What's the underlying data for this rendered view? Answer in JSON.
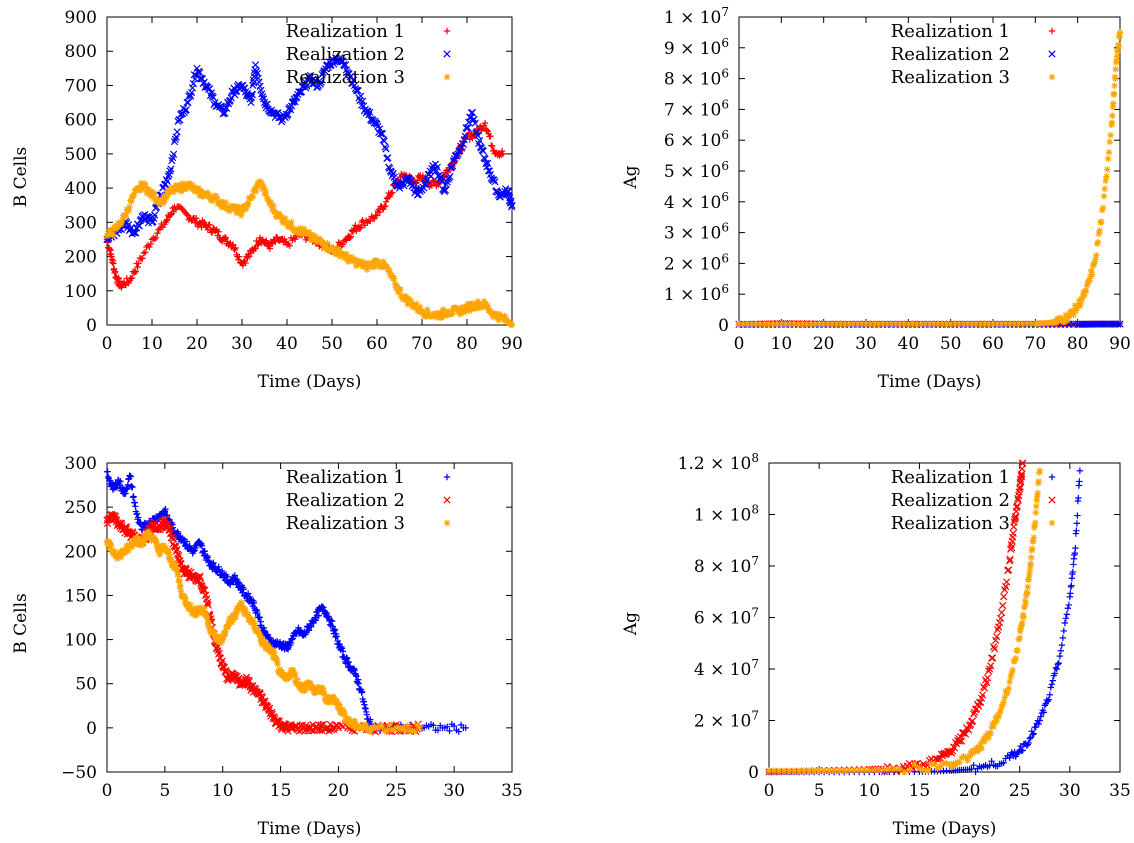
{
  "chart_data": [
    {
      "type": "scatter",
      "xlabel": "Time (Days)",
      "ylabel": "B Cells",
      "xlim": [
        0,
        90
      ],
      "ylim": [
        0,
        900
      ],
      "xticks": [
        "0",
        "10",
        "20",
        "30",
        "40",
        "50",
        "60",
        "70",
        "80",
        "90"
      ],
      "yticks": [
        "0",
        "100",
        "200",
        "300",
        "400",
        "500",
        "600",
        "700",
        "800",
        "900"
      ],
      "legend_position": "top-right",
      "series": [
        {
          "name": "Realization 1",
          "marker": "+",
          "color": "#ff0000",
          "x": [
            0,
            1,
            2,
            3,
            5,
            7,
            10,
            13,
            15,
            18,
            20,
            22,
            24,
            26,
            28,
            30,
            32,
            34,
            36,
            38,
            40,
            43,
            46,
            48,
            50,
            53,
            55,
            57,
            60,
            62,
            64,
            66,
            68,
            70,
            72,
            74,
            76,
            78,
            80,
            82,
            84,
            86,
            88
          ],
          "y": [
            250,
            200,
            140,
            115,
            130,
            180,
            250,
            300,
            345,
            320,
            300,
            290,
            275,
            250,
            235,
            180,
            210,
            255,
            230,
            250,
            235,
            265,
            250,
            235,
            215,
            250,
            280,
            300,
            320,
            360,
            410,
            440,
            420,
            430,
            410,
            420,
            460,
            500,
            550,
            560,
            590,
            510,
            500
          ]
        },
        {
          "name": "Realization 2",
          "marker": "x",
          "color": "#0000ff",
          "x": [
            0,
            2,
            4,
            6,
            8,
            10,
            12,
            14,
            16,
            18,
            20,
            22,
            24,
            26,
            28,
            30,
            32,
            33,
            35,
            37,
            39,
            41,
            43,
            45,
            47,
            49,
            51,
            53,
            55,
            57,
            59,
            61,
            63,
            65,
            67,
            69,
            71,
            73,
            75,
            77,
            79,
            81,
            83,
            85,
            87,
            89,
            90
          ],
          "y": [
            250,
            270,
            300,
            270,
            320,
            300,
            380,
            450,
            600,
            650,
            750,
            700,
            650,
            620,
            680,
            700,
            650,
            760,
            650,
            620,
            600,
            640,
            680,
            720,
            700,
            760,
            780,
            760,
            700,
            640,
            600,
            560,
            450,
            400,
            430,
            380,
            420,
            470,
            390,
            480,
            530,
            620,
            520,
            450,
            380,
            390,
            350
          ]
        },
        {
          "name": "Realization 3",
          "marker": "*",
          "color": "#ffa500",
          "x": [
            0,
            2,
            4,
            6,
            8,
            10,
            12,
            14,
            16,
            18,
            20,
            22,
            24,
            26,
            28,
            30,
            32,
            34,
            36,
            38,
            40,
            42,
            44,
            46,
            48,
            50,
            52,
            54,
            56,
            58,
            60,
            62,
            64,
            66,
            68,
            70,
            72,
            74,
            76,
            78,
            80,
            82,
            84,
            86,
            88,
            90
          ],
          "y": [
            260,
            280,
            320,
            380,
            410,
            380,
            360,
            390,
            400,
            410,
            390,
            380,
            370,
            350,
            340,
            330,
            370,
            420,
            360,
            320,
            300,
            280,
            270,
            250,
            240,
            220,
            210,
            190,
            180,
            170,
            185,
            170,
            120,
            80,
            60,
            40,
            30,
            30,
            40,
            40,
            50,
            60,
            60,
            30,
            20,
            0
          ]
        }
      ]
    },
    {
      "type": "scatter",
      "xlabel": "Time (Days)",
      "ylabel": "Ag",
      "xlim": [
        0,
        90
      ],
      "ylim": [
        0,
        10000000
      ],
      "xticks": [
        "0",
        "10",
        "20",
        "30",
        "40",
        "50",
        "60",
        "70",
        "80",
        "90"
      ],
      "yticks": [
        "0",
        "1 × 10^6",
        "2 × 10^6",
        "3 × 10^6",
        "4 × 10^6",
        "5 × 10^6",
        "6 × 10^6",
        "7 × 10^6",
        "8 × 10^6",
        "9 × 10^6",
        "1 × 10^7"
      ],
      "legend_position": "top-right",
      "series": [
        {
          "name": "Realization 1",
          "marker": "+",
          "color": "#ff0000",
          "x": [
            0,
            5,
            10,
            15,
            20,
            30,
            40,
            50,
            60,
            70,
            75,
            80,
            85,
            90
          ],
          "y": [
            20000,
            40000,
            60000,
            50000,
            40000,
            40000,
            40000,
            40000,
            40000,
            40000,
            40000,
            40000,
            40000,
            40000
          ]
        },
        {
          "name": "Realization 2",
          "marker": "x",
          "color": "#0000ff",
          "x": [
            0,
            10,
            20,
            30,
            40,
            50,
            60,
            70,
            80,
            85,
            90
          ],
          "y": [
            20000,
            20000,
            20000,
            20000,
            20000,
            20000,
            20000,
            20000,
            20000,
            30000,
            30000
          ]
        },
        {
          "name": "Realization 3",
          "marker": "*",
          "color": "#ffa500",
          "x": [
            0,
            10,
            20,
            30,
            40,
            50,
            60,
            70,
            74,
            76,
            78,
            80,
            82,
            84,
            86,
            88,
            89,
            90
          ],
          "y": [
            30000,
            30000,
            30000,
            30000,
            30000,
            30000,
            30000,
            40000,
            80000,
            150000,
            300000,
            600000,
            1100000,
            2000000,
            3800000,
            6500000,
            8300000,
            9500000
          ]
        }
      ]
    },
    {
      "type": "scatter",
      "xlabel": "Time (Days)",
      "ylabel": "B Cells",
      "xlim": [
        0,
        35
      ],
      "ylim": [
        -50,
        300
      ],
      "xticks": [
        "0",
        "5",
        "10",
        "15",
        "20",
        "25",
        "30",
        "35"
      ],
      "yticks": [
        "−50",
        "0",
        "50",
        "100",
        "150",
        "200",
        "250",
        "300"
      ],
      "legend_position": "top-right",
      "series": [
        {
          "name": "Realization 1",
          "marker": "+",
          "color": "#0000ff",
          "x": [
            0,
            0.5,
            1,
            1.5,
            2,
            2.5,
            3,
            3.5,
            4,
            4.5,
            5,
            5.5,
            6,
            6.5,
            7,
            7.5,
            8,
            8.5,
            9,
            9.5,
            10,
            10.5,
            11,
            11.5,
            12,
            12.5,
            13,
            13.5,
            14,
            14.5,
            15,
            15.5,
            16,
            16.5,
            17,
            17.5,
            18,
            18.5,
            19,
            19.5,
            20,
            20.5,
            21,
            21.5,
            22,
            22.5,
            23,
            25,
            27,
            29,
            31
          ],
          "y": [
            290,
            270,
            280,
            265,
            285,
            245,
            225,
            230,
            235,
            240,
            245,
            230,
            220,
            215,
            205,
            200,
            210,
            195,
            185,
            180,
            175,
            165,
            170,
            160,
            150,
            145,
            130,
            110,
            100,
            95,
            95,
            90,
            100,
            110,
            105,
            115,
            125,
            135,
            130,
            115,
            95,
            80,
            70,
            60,
            40,
            10,
            0,
            0,
            0,
            0,
            0
          ]
        },
        {
          "name": "Realization 2",
          "marker": "×",
          "color": "#ff0000",
          "x": [
            0,
            0.5,
            1,
            1.5,
            2,
            2.5,
            3,
            3.5,
            4,
            4.5,
            5,
            5.5,
            6,
            6.5,
            7,
            7.5,
            8,
            8.5,
            9,
            9.5,
            10,
            10.5,
            11,
            11.5,
            12,
            12.5,
            13,
            13.5,
            14,
            14.5,
            15,
            15.5,
            16,
            17,
            18,
            19,
            20,
            22,
            24,
            26,
            27
          ],
          "y": [
            235,
            240,
            230,
            225,
            220,
            215,
            210,
            220,
            230,
            225,
            235,
            220,
            200,
            180,
            175,
            170,
            170,
            150,
            120,
            90,
            70,
            55,
            60,
            50,
            55,
            45,
            40,
            30,
            20,
            10,
            3,
            0,
            0,
            0,
            0,
            0,
            0,
            0,
            0,
            0,
            0
          ]
        },
        {
          "name": "Realization 3",
          "marker": "*",
          "color": "#ffa500",
          "x": [
            0,
            0.5,
            1,
            1.5,
            2,
            2.5,
            3,
            3.5,
            4,
            4.5,
            5,
            5.5,
            6,
            6.5,
            7,
            7.5,
            8,
            8.5,
            9,
            9.5,
            10,
            10.5,
            11,
            11.5,
            12,
            12.5,
            13,
            13.5,
            14,
            14.5,
            15,
            15.5,
            16,
            16.5,
            17,
            17.5,
            18,
            18.5,
            19,
            19.5,
            20,
            20.5,
            21,
            21.5,
            22,
            23,
            25,
            27
          ],
          "y": [
            210,
            200,
            195,
            200,
            205,
            215,
            210,
            220,
            215,
            200,
            205,
            190,
            180,
            150,
            140,
            130,
            135,
            130,
            110,
            100,
            100,
            120,
            125,
            140,
            130,
            120,
            110,
            95,
            90,
            80,
            60,
            55,
            65,
            50,
            45,
            50,
            40,
            45,
            30,
            35,
            25,
            15,
            5,
            3,
            0,
            0,
            0,
            0
          ]
        }
      ]
    },
    {
      "type": "scatter",
      "xlabel": "Time (Days)",
      "ylabel": "Ag",
      "xlim": [
        0,
        35
      ],
      "ylim": [
        0,
        120000000
      ],
      "xticks": [
        "0",
        "5",
        "10",
        "15",
        "20",
        "25",
        "30",
        "35"
      ],
      "yticks": [
        "0",
        "2 × 10^7",
        "4 × 10^7",
        "6 × 10^7",
        "8 × 10^7",
        "1 × 10^8",
        "1.2 × 10^8"
      ],
      "legend_position": "top-right",
      "series": [
        {
          "name": "Realization 1",
          "marker": "+",
          "color": "#0000ff",
          "x": [
            0,
            5,
            10,
            15,
            18,
            20,
            22,
            24,
            25,
            26,
            27,
            28,
            29,
            30,
            30.5,
            31
          ],
          "y": [
            0,
            0,
            0,
            100000,
            500000,
            1000000,
            2500000,
            5500000,
            8500000,
            13000000,
            20000000,
            30000000,
            45000000,
            68000000,
            85000000,
            117000000
          ]
        },
        {
          "name": "Realization 2",
          "marker": "×",
          "color": "#ff0000",
          "x": [
            0,
            5,
            10,
            13,
            15,
            17,
            18,
            19,
            20,
            21,
            22,
            23,
            24,
            24.5,
            25,
            25.3
          ],
          "y": [
            0,
            500000,
            1000000,
            1500000,
            2500000,
            5000000,
            8000000,
            12000000,
            18000000,
            27000000,
            40000000,
            58000000,
            82000000,
            98000000,
            110000000,
            120000000
          ]
        },
        {
          "name": "Realization 3",
          "marker": "*",
          "color": "#ffa500",
          "x": [
            0,
            5,
            10,
            15,
            18,
            20,
            21,
            22,
            23,
            24,
            25,
            25.5,
            26,
            26.5,
            27
          ],
          "y": [
            500000,
            500000,
            800000,
            1500000,
            3000000,
            6000000,
            9500000,
            15000000,
            23000000,
            35000000,
            52000000,
            64000000,
            78000000,
            96000000,
            117000000
          ]
        }
      ]
    }
  ]
}
